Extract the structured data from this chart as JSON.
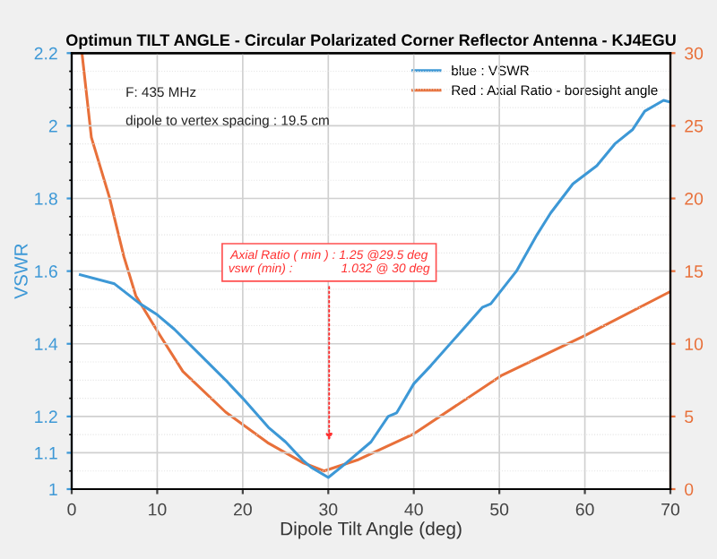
{
  "chart_data": {
    "type": "line",
    "title": "Optimun TILT ANGLE - Circular Polarizated Corner Reflector Antenna - KJ4EGU",
    "xlabel": "Dipole Tilt Angle (deg)",
    "ylabel": "VSWR",
    "xlim": [
      0,
      70
    ],
    "xticks": [
      0,
      10,
      20,
      30,
      40,
      50,
      60,
      70
    ],
    "ylim": [
      1,
      2.2
    ],
    "yticks": [
      1,
      1.1,
      1.2,
      1.4,
      1.6,
      1.8,
      2,
      2.2
    ],
    "y2lim": [
      0,
      30
    ],
    "y2ticks": [
      0,
      5,
      10,
      15,
      20,
      25,
      30
    ],
    "grid": true,
    "legend": "top right",
    "annotations": [
      "F: 435 MHz",
      "dipole to vertex spacing : 19.5 cm",
      "Axial Ratio ( min ) : 1.25 @29.5 deg\nvswr (min) :              1.032 @ 30 deg"
    ],
    "series": [
      {
        "name": "blue : VSWR",
        "color": "#3d98d6",
        "x": [
          1,
          5,
          8,
          10,
          12,
          15,
          18,
          20,
          23,
          25,
          27,
          28,
          30,
          32,
          35,
          37,
          38,
          40,
          42,
          45,
          48,
          49,
          52,
          54.4,
          56,
          58.6,
          61.4,
          63.5,
          65.6,
          67,
          69.2,
          70
        ],
        "values": [
          1.59,
          1.565,
          1.51,
          1.48,
          1.44,
          1.37,
          1.3,
          1.25,
          1.17,
          1.13,
          1.08,
          1.06,
          1.032,
          1.07,
          1.13,
          1.2,
          1.21,
          1.29,
          1.34,
          1.42,
          1.5,
          1.51,
          1.6,
          1.7,
          1.76,
          1.84,
          1.89,
          1.95,
          1.99,
          2.04,
          2.07,
          2.065
        ]
      },
      {
        "name": "Red : Axial Ratio - boresight angle",
        "color": "#e8703a",
        "axis": "y2",
        "x": [
          1.2,
          2.3,
          4.4,
          6.1,
          7.5,
          10.3,
          13,
          18,
          22.9,
          27.1,
          29.5,
          33.4,
          40,
          50.2,
          60.1,
          70
        ],
        "values": [
          30,
          24.2,
          20.1,
          16,
          13.3,
          10.6,
          8.1,
          5.3,
          3.2,
          1.8,
          1.25,
          2.0,
          3.8,
          7.8,
          10.6,
          13.6
        ]
      }
    ]
  }
}
